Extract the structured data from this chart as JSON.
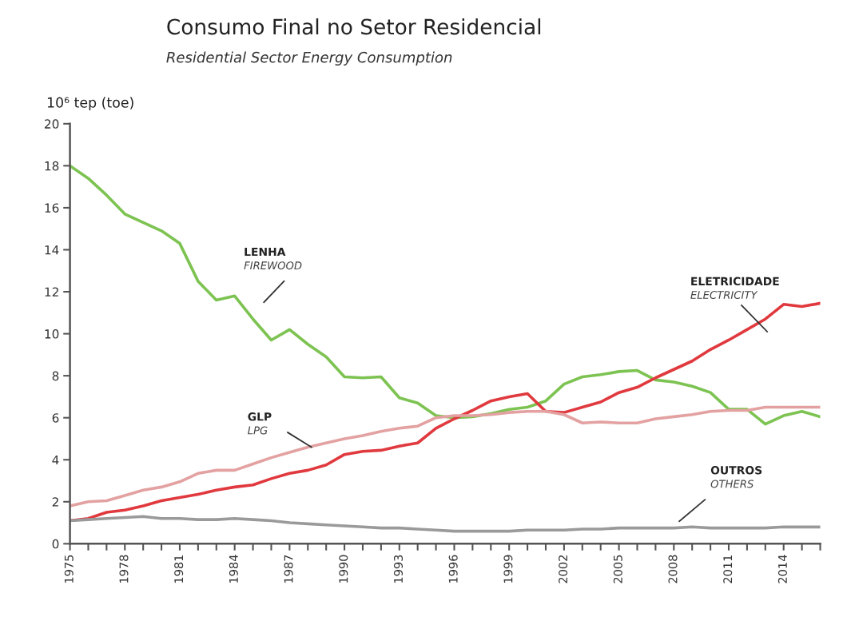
{
  "chart_data": {
    "type": "line",
    "title": "Consumo Final no Setor Residencial",
    "subtitle": "Residential Sector Energy Consumption",
    "ylabel": "10⁶ tep (toe)",
    "x": [
      1975,
      1976,
      1977,
      1978,
      1979,
      1980,
      1981,
      1982,
      1983,
      1984,
      1985,
      1986,
      1987,
      1988,
      1989,
      1990,
      1991,
      1992,
      1993,
      1994,
      1995,
      1996,
      1997,
      1998,
      1999,
      2000,
      2001,
      2002,
      2003,
      2004,
      2005,
      2006,
      2007,
      2008,
      2009,
      2010,
      2011,
      2012,
      2013,
      2014,
      2015,
      2016
    ],
    "series": [
      {
        "name": "LENHA\nFIREWOOD",
        "color": "#7dc352",
        "values": [
          18,
          17.4,
          16.6,
          15.7,
          15.3,
          14.9,
          14.3,
          12.5,
          11.6,
          11.8,
          10.7,
          9.7,
          10.2,
          9.5,
          8.9,
          7.95,
          7.9,
          7.95,
          6.95,
          6.7,
          6.1,
          6.0,
          6.05,
          6.2,
          6.4,
          6.5,
          6.8,
          7.6,
          7.95,
          8.05,
          8.2,
          8.25,
          7.8,
          7.7,
          7.5,
          7.2,
          6.4,
          6.4,
          5.7,
          6.1,
          6.3,
          6.05
        ]
      },
      {
        "name": "ELETRICIDADE\nELECTRICITY",
        "color": "#e0393e",
        "values": [
          1.1,
          1.2,
          1.5,
          1.6,
          1.8,
          2.05,
          2.2,
          2.35,
          2.55,
          2.7,
          2.8,
          3.1,
          3.35,
          3.5,
          3.75,
          4.25,
          4.4,
          4.45,
          4.65,
          4.8,
          5.5,
          5.95,
          6.35,
          6.8,
          7.0,
          7.15,
          6.3,
          6.25,
          6.5,
          6.75,
          7.2,
          7.45,
          7.9,
          8.3,
          8.7,
          9.25,
          9.7,
          10.2,
          10.7,
          11.4,
          11.3,
          11.45
        ]
      },
      {
        "name": "GLP\nLPG",
        "color": "#e3a1a1",
        "values": [
          1.8,
          2.0,
          2.05,
          2.3,
          2.55,
          2.7,
          2.95,
          3.35,
          3.5,
          3.5,
          3.8,
          4.1,
          4.35,
          4.6,
          4.8,
          5.0,
          5.15,
          5.35,
          5.5,
          5.6,
          6.0,
          6.1,
          6.1,
          6.15,
          6.25,
          6.3,
          6.3,
          6.15,
          5.75,
          5.8,
          5.75,
          5.75,
          5.95,
          6.05,
          6.15,
          6.3,
          6.35,
          6.35,
          6.5,
          6.5,
          6.5,
          6.5
        ]
      },
      {
        "name": "OUTROS\nOTHERS",
        "color": "#9a9a9a",
        "values": [
          1.1,
          1.15,
          1.2,
          1.25,
          1.3,
          1.2,
          1.2,
          1.15,
          1.15,
          1.2,
          1.15,
          1.1,
          1.0,
          0.95,
          0.9,
          0.85,
          0.8,
          0.75,
          0.75,
          0.7,
          0.65,
          0.6,
          0.6,
          0.6,
          0.6,
          0.65,
          0.65,
          0.65,
          0.7,
          0.7,
          0.75,
          0.75,
          0.75,
          0.75,
          0.8,
          0.75,
          0.75,
          0.75,
          0.75,
          0.8,
          0.8,
          0.8
        ]
      }
    ],
    "xlim": [
      1975,
      2016
    ],
    "xticks": [
      1975,
      {
        "value": 1976,
        "label": null
      },
      {
        "value": 1977,
        "label": null
      },
      1978,
      {
        "value": 1979,
        "label": null
      },
      {
        "value": 1980,
        "label": null
      },
      1981,
      {
        "value": 1982,
        "label": null
      },
      {
        "value": 1983,
        "label": null
      },
      1984,
      {
        "value": 1985,
        "label": null
      },
      {
        "value": 1986,
        "label": null
      },
      1987,
      {
        "value": 1988,
        "label": null
      },
      {
        "value": 1989,
        "label": null
      },
      1990,
      {
        "value": 1991,
        "label": null
      },
      {
        "value": 1992,
        "label": null
      },
      1993,
      {
        "value": 1994,
        "label": null
      },
      {
        "value": 1995,
        "label": null
      },
      1996,
      {
        "value": 1997,
        "label": null
      },
      {
        "value": 1998,
        "label": null
      },
      1999,
      {
        "value": 2000,
        "label": null
      },
      {
        "value": 2001,
        "label": null
      },
      2002,
      {
        "value": 2003,
        "label": null
      },
      {
        "value": 2004,
        "label": null
      },
      2005,
      {
        "value": 2006,
        "label": null
      },
      {
        "value": 2007,
        "label": null
      },
      2008,
      {
        "value": 2009,
        "label": null
      },
      {
        "value": 2010,
        "label": null
      },
      2011,
      {
        "value": 2012,
        "label": null
      },
      {
        "value": 2013,
        "label": null
      },
      2014,
      {
        "value": 2015,
        "label": null
      },
      {
        "value": 2016,
        "label": null
      }
    ],
    "ylim": [
      0,
      20
    ],
    "yticks": [
      0,
      2,
      4,
      6,
      8,
      10,
      12,
      14,
      16,
      18,
      20
    ],
    "grid": false,
    "marker": "none",
    "line_style": "solid"
  }
}
